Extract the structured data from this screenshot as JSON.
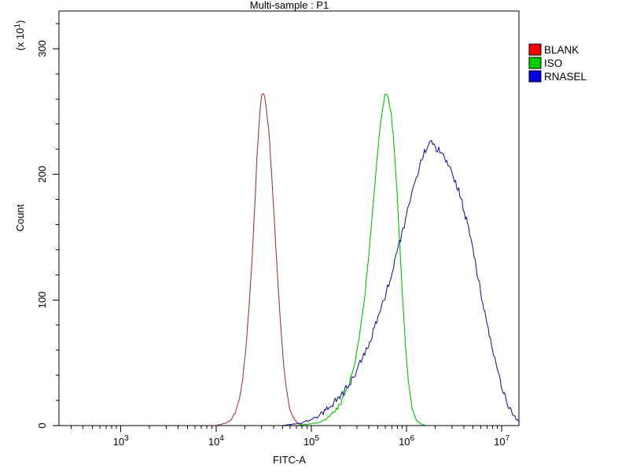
{
  "background": "#ffffff",
  "chart_data": {
    "type": "line",
    "title": "Multi-sample : P1",
    "xlabel": "FITC-A",
    "ylabel": "Count",
    "y_multiplier": {
      "prefix": "(x 10",
      "sup": "1",
      "suffix": ")"
    },
    "x_scale": "log",
    "xlim_log10": [
      2.35,
      7.18
    ],
    "ylim": [
      0,
      330
    ],
    "y_ticks": [
      0,
      100,
      200,
      300
    ],
    "y_minor_step": 20,
    "x_tick_exponents": [
      3,
      4,
      5,
      6,
      7
    ],
    "grid": false,
    "legend_position": "top-right",
    "axis_color": "#000000",
    "text_color": "#000000",
    "series": [
      {
        "name": "BLANK",
        "color": "#9a3b3b",
        "legend_color": "#ff0000",
        "noise": 1.5,
        "peak_x": 30000,
        "peak_y": 265,
        "points": [
          [
            3.9,
            0
          ],
          [
            4.0,
            0
          ],
          [
            4.05,
            1
          ],
          [
            4.1,
            2
          ],
          [
            4.15,
            4
          ],
          [
            4.2,
            10
          ],
          [
            4.24,
            20
          ],
          [
            4.28,
            38
          ],
          [
            4.32,
            68
          ],
          [
            4.36,
            110
          ],
          [
            4.4,
            165
          ],
          [
            4.43,
            215
          ],
          [
            4.46,
            250
          ],
          [
            4.48,
            263
          ],
          [
            4.5,
            265
          ],
          [
            4.52,
            258
          ],
          [
            4.55,
            238
          ],
          [
            4.58,
            205
          ],
          [
            4.61,
            165
          ],
          [
            4.64,
            125
          ],
          [
            4.67,
            88
          ],
          [
            4.7,
            57
          ],
          [
            4.73,
            33
          ],
          [
            4.76,
            18
          ],
          [
            4.8,
            8
          ],
          [
            4.84,
            3
          ],
          [
            4.88,
            1
          ],
          [
            4.92,
            0
          ],
          [
            5.0,
            0
          ]
        ]
      },
      {
        "name": "ISO",
        "color": "#00c000",
        "legend_color": "#00cc00",
        "noise": 2,
        "peak_x": 600000,
        "peak_y": 265,
        "points": [
          [
            4.7,
            0
          ],
          [
            4.85,
            0
          ],
          [
            4.95,
            1
          ],
          [
            5.05,
            2
          ],
          [
            5.1,
            3
          ],
          [
            5.15,
            5
          ],
          [
            5.2,
            8
          ],
          [
            5.25,
            12
          ],
          [
            5.3,
            17
          ],
          [
            5.35,
            24
          ],
          [
            5.4,
            34
          ],
          [
            5.45,
            48
          ],
          [
            5.5,
            68
          ],
          [
            5.55,
            95
          ],
          [
            5.6,
            132
          ],
          [
            5.64,
            168
          ],
          [
            5.68,
            205
          ],
          [
            5.72,
            237
          ],
          [
            5.75,
            255
          ],
          [
            5.78,
            265
          ],
          [
            5.81,
            261
          ],
          [
            5.84,
            247
          ],
          [
            5.87,
            222
          ],
          [
            5.9,
            186
          ],
          [
            5.93,
            143
          ],
          [
            5.96,
            100
          ],
          [
            5.99,
            62
          ],
          [
            6.02,
            34
          ],
          [
            6.05,
            17
          ],
          [
            6.08,
            8
          ],
          [
            6.12,
            3
          ],
          [
            6.16,
            1
          ],
          [
            6.2,
            0
          ],
          [
            6.3,
            0
          ]
        ]
      },
      {
        "name": "RNASEL",
        "color": "#22228e",
        "legend_color": "#0000e0",
        "noise": 3,
        "peak_x": 1800000,
        "peak_y": 226,
        "points": [
          [
            4.7,
            0
          ],
          [
            4.8,
            1
          ],
          [
            4.9,
            2
          ],
          [
            5.0,
            5
          ],
          [
            5.1,
            9
          ],
          [
            5.2,
            15
          ],
          [
            5.3,
            23
          ],
          [
            5.4,
            33
          ],
          [
            5.5,
            47
          ],
          [
            5.6,
            64
          ],
          [
            5.7,
            85
          ],
          [
            5.8,
            110
          ],
          [
            5.9,
            138
          ],
          [
            6.0,
            167
          ],
          [
            6.08,
            192
          ],
          [
            6.15,
            210
          ],
          [
            6.2,
            220
          ],
          [
            6.25,
            226
          ],
          [
            6.3,
            222
          ],
          [
            6.35,
            219
          ],
          [
            6.4,
            214
          ],
          [
            6.48,
            202
          ],
          [
            6.56,
            184
          ],
          [
            6.64,
            160
          ],
          [
            6.72,
            130
          ],
          [
            6.8,
            98
          ],
          [
            6.88,
            68
          ],
          [
            6.96,
            42
          ],
          [
            7.04,
            22
          ],
          [
            7.1,
            11
          ],
          [
            7.15,
            5
          ],
          [
            7.2,
            2
          ],
          [
            7.25,
            0
          ]
        ]
      }
    ]
  }
}
